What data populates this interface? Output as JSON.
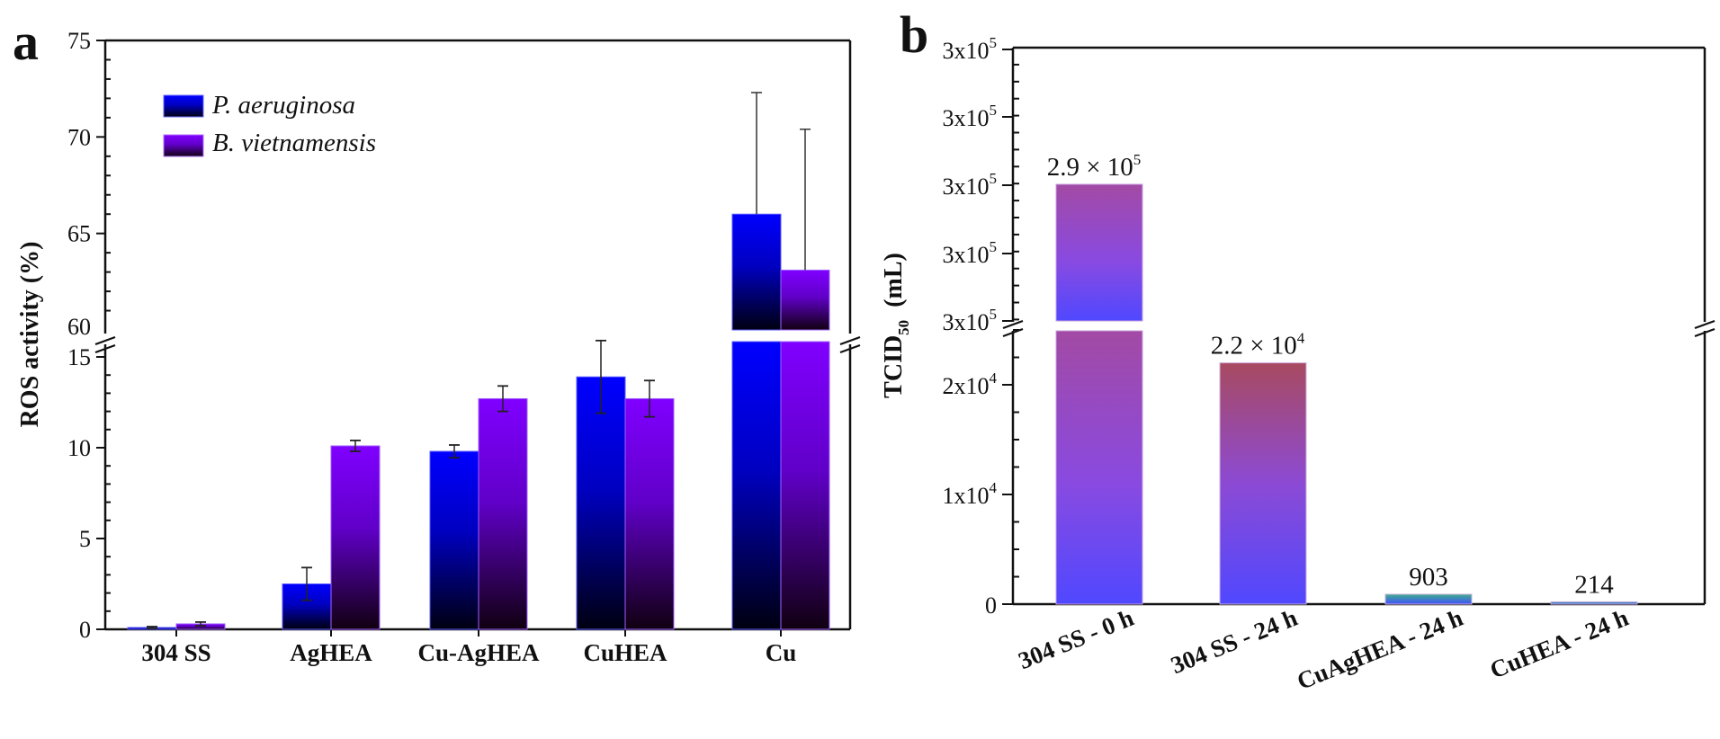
{
  "chart_data": [
    {
      "panel": "a",
      "type": "bar",
      "title": "",
      "xlabel": "",
      "ylabel": "ROS activity (%)",
      "categories": [
        "304 SS",
        "AgHEA",
        "Cu-AgHEA",
        "CuHEA",
        "Cu"
      ],
      "series": [
        {
          "name": "P. aeruginosa",
          "color": "#0000ff",
          "values": [
            0.1,
            2.5,
            9.8,
            13.9,
            66.0
          ],
          "error": [
            0.05,
            0.9,
            0.35,
            2.0,
            6.3
          ]
        },
        {
          "name": "B. vietnamensis",
          "color": "#8000ff",
          "values": [
            0.3,
            10.1,
            12.7,
            12.7,
            63.1
          ],
          "error": [
            0.1,
            0.3,
            0.7,
            1.0,
            7.3
          ]
        }
      ],
      "y_axis_break": {
        "lower": [
          0,
          15
        ],
        "upper": [
          60,
          75
        ]
      },
      "yticks_lower": [
        "0",
        "5",
        "10",
        "15"
      ],
      "yticks_upper": [
        "60",
        "65",
        "70",
        "75"
      ],
      "legend": {
        "placement": "top-left",
        "entries": [
          "P. aeruginosa",
          "B. vietnamensis"
        ]
      },
      "grid": false
    },
    {
      "panel": "b",
      "type": "bar",
      "title": "",
      "xlabel": "",
      "ylabel": "TCID50 (mL)",
      "ylabel_main": "TCID",
      "ylabel_sub": "50",
      "ylabel_unit": "(mL)",
      "categories": [
        "304 SS - 0 h",
        "304 SS - 24 h",
        "CuAgHEA - 24 h",
        "CuHEA - 24 h"
      ],
      "values": [
        290000,
        22000,
        903,
        214
      ],
      "data_labels": [
        {
          "base": "2.9 × 10",
          "exp": "5"
        },
        {
          "base": "2.2 × 10",
          "exp": "4"
        },
        {
          "base": "903",
          "exp": ""
        },
        {
          "base": "214",
          "exp": ""
        }
      ],
      "y_axis_break": {
        "lower": [
          0,
          25000
        ],
        "upper": [
          280000,
          300000
        ]
      },
      "yticks_lower": [
        {
          "base": "0",
          "exp": ""
        },
        {
          "base": "1x10",
          "exp": "4"
        },
        {
          "base": "2x10",
          "exp": "4"
        }
      ],
      "yticks_upper": [
        {
          "base": "3x10",
          "exp": "5"
        },
        {
          "base": "3x10",
          "exp": "5"
        },
        {
          "base": "3x10",
          "exp": "5"
        },
        {
          "base": "3x10",
          "exp": "5"
        },
        {
          "base": "3x10",
          "exp": "5"
        }
      ],
      "grid": false
    }
  ],
  "panels": {
    "a": "a",
    "b": "b"
  }
}
